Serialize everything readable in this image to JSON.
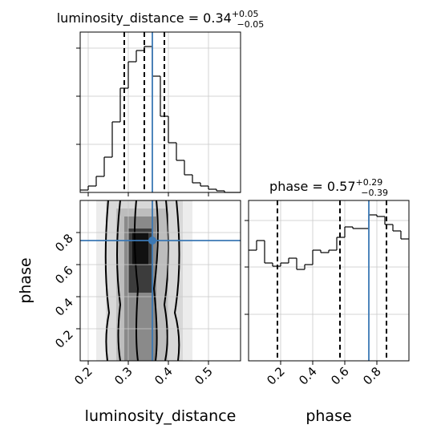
{
  "chart_data": [
    {
      "type": "histogram",
      "title": "luminosity_distance = 0.34",
      "title_plus": "+0.05",
      "title_minus": "−0.05",
      "bins": [
        0.18,
        0.2,
        0.22,
        0.24,
        0.26,
        0.28,
        0.3,
        0.32,
        0.34,
        0.36,
        0.38,
        0.4,
        0.42,
        0.44,
        0.46,
        0.48,
        0.5,
        0.52,
        0.54,
        0.56,
        0.58
      ],
      "values": [
        3,
        8,
        20,
        44,
        88,
        130,
        163,
        177,
        182,
        145,
        95,
        62,
        40,
        22,
        12,
        8,
        4,
        2,
        0,
        0
      ],
      "xlim": [
        0.18,
        0.58
      ],
      "ylim": [
        0,
        200
      ],
      "xticks": [
        0.2,
        0.3,
        0.4,
        0.5
      ],
      "yticks": [
        60,
        120,
        180
      ],
      "quantiles": [
        0.29,
        0.34,
        0.39
      ],
      "truth": 0.36,
      "color": "#000000",
      "truth_color": "#3b78b4",
      "grid": true
    },
    {
      "type": "histogram",
      "title": "phase = 0.57",
      "title_plus": "+0.29",
      "title_minus": "−0.39",
      "bins": [
        0,
        0.05,
        0.1,
        0.15,
        0.2,
        0.25,
        0.3,
        0.35,
        0.4,
        0.45,
        0.5,
        0.55,
        0.6,
        0.65,
        0.7,
        0.75,
        0.8,
        0.85,
        0.9,
        0.95,
        1.0
      ],
      "values": [
        138,
        150,
        122,
        118,
        122,
        128,
        114,
        120,
        138,
        135,
        138,
        154,
        167,
        165,
        165,
        182,
        180,
        170,
        162,
        152
      ],
      "xlim": [
        0,
        1
      ],
      "ylim": [
        0,
        200
      ],
      "xticks": [
        0.2,
        0.4,
        0.6,
        0.8
      ],
      "yticks": [
        58,
        117,
        175
      ],
      "quantiles": [
        0.18,
        0.57,
        0.86
      ],
      "truth": 0.75,
      "xlabel": "phase",
      "color": "#000000",
      "truth_color": "#3b78b4",
      "grid": true
    },
    {
      "type": "density2d",
      "xlabel": "luminosity_distance",
      "ylabel": "phase",
      "xlim": [
        0.18,
        0.58
      ],
      "ylim": [
        0,
        1
      ],
      "xticks": [
        0.2,
        0.3,
        0.4,
        0.5
      ],
      "yticks": [
        0.2,
        0.4,
        0.6,
        0.8
      ],
      "truth": [
        0.36,
        0.75
      ],
      "truth_color": "#3b78b4",
      "grid": true
    }
  ]
}
